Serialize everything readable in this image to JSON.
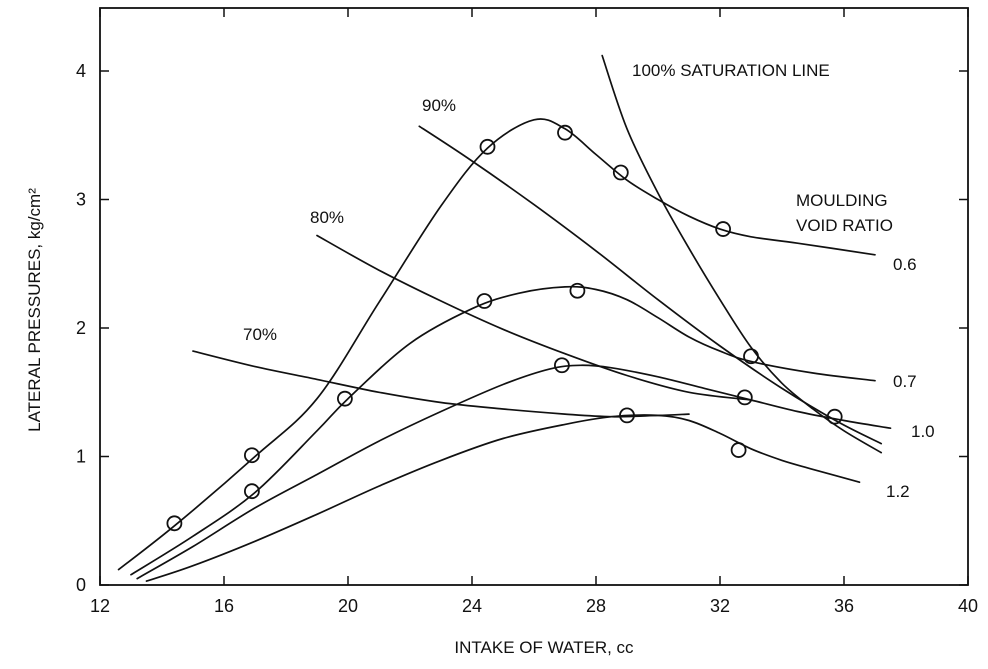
{
  "chart_data": {
    "type": "line",
    "title": "",
    "xlabel": "INTAKE OF WATER, cc",
    "ylabel": "LATERAL PRESSURES, kg/cm²",
    "xlim": [
      12,
      40
    ],
    "ylim": [
      0,
      4.4
    ],
    "xticks": [
      12,
      16,
      20,
      24,
      28,
      32,
      36,
      40
    ],
    "yticks": [
      0,
      1,
      2,
      3,
      4
    ],
    "grid": false,
    "legend_title": "MOULDING VOID RATIO",
    "series": [
      {
        "name": "0.6",
        "curve": [
          [
            12.6,
            0.12
          ],
          [
            14.5,
            0.48
          ],
          [
            17,
            1.0
          ],
          [
            19,
            1.45
          ],
          [
            21,
            2.2
          ],
          [
            23,
            2.95
          ],
          [
            24.5,
            3.4
          ],
          [
            26,
            3.62
          ],
          [
            27,
            3.55
          ],
          [
            28,
            3.35
          ],
          [
            29,
            3.15
          ],
          [
            30,
            3.0
          ],
          [
            31,
            2.87
          ],
          [
            32,
            2.77
          ],
          [
            33,
            2.71
          ],
          [
            34.5,
            2.66
          ],
          [
            37,
            2.57
          ]
        ],
        "points": [
          [
            14.4,
            0.48
          ],
          [
            16.9,
            1.01
          ],
          [
            24.5,
            3.41
          ],
          [
            27.0,
            3.52
          ],
          [
            28.8,
            3.21
          ],
          [
            32.1,
            2.77
          ]
        ]
      },
      {
        "name": "0.7",
        "curve": [
          [
            13.0,
            0.08
          ],
          [
            15,
            0.38
          ],
          [
            17,
            0.72
          ],
          [
            19,
            1.2
          ],
          [
            20,
            1.45
          ],
          [
            22,
            1.88
          ],
          [
            24,
            2.15
          ],
          [
            25.5,
            2.27
          ],
          [
            27,
            2.32
          ],
          [
            28,
            2.3
          ],
          [
            29,
            2.22
          ],
          [
            30,
            2.08
          ],
          [
            31,
            1.93
          ],
          [
            32,
            1.82
          ],
          [
            33,
            1.74
          ],
          [
            35,
            1.65
          ],
          [
            37,
            1.59
          ]
        ],
        "points": [
          [
            16.9,
            0.73
          ],
          [
            19.9,
            1.45
          ],
          [
            24.4,
            2.21
          ],
          [
            27.4,
            2.29
          ],
          [
            33.0,
            1.78
          ]
        ]
      },
      {
        "name": "1.0",
        "curve": [
          [
            13.2,
            0.05
          ],
          [
            15,
            0.3
          ],
          [
            17,
            0.6
          ],
          [
            19,
            0.86
          ],
          [
            21,
            1.12
          ],
          [
            23,
            1.35
          ],
          [
            25,
            1.56
          ],
          [
            26.5,
            1.68
          ],
          [
            27.5,
            1.71
          ],
          [
            28.5,
            1.69
          ],
          [
            30,
            1.62
          ],
          [
            31.5,
            1.53
          ],
          [
            33,
            1.44
          ],
          [
            34.5,
            1.35
          ],
          [
            36,
            1.28
          ],
          [
            37.5,
            1.22
          ]
        ],
        "points": [
          [
            26.9,
            1.71
          ],
          [
            32.8,
            1.46
          ],
          [
            35.7,
            1.31
          ]
        ]
      },
      {
        "name": "1.2",
        "curve": [
          [
            13.5,
            0.03
          ],
          [
            15,
            0.15
          ],
          [
            17,
            0.34
          ],
          [
            19,
            0.55
          ],
          [
            21,
            0.77
          ],
          [
            23,
            0.97
          ],
          [
            25,
            1.14
          ],
          [
            27,
            1.25
          ],
          [
            28.5,
            1.31
          ],
          [
            30,
            1.32
          ],
          [
            31,
            1.28
          ],
          [
            32,
            1.18
          ],
          [
            33,
            1.06
          ],
          [
            34,
            0.97
          ],
          [
            35,
            0.9
          ],
          [
            36.5,
            0.8
          ]
        ],
        "points": [
          [
            29.0,
            1.32
          ],
          [
            32.6,
            1.05
          ]
        ]
      }
    ],
    "reference_lines": [
      {
        "name": "100% SATURATION LINE",
        "curve": [
          [
            28.2,
            4.12
          ],
          [
            29,
            3.55
          ],
          [
            30,
            3.05
          ],
          [
            31,
            2.62
          ],
          [
            32,
            2.22
          ],
          [
            33,
            1.85
          ],
          [
            34,
            1.57
          ],
          [
            35,
            1.37
          ],
          [
            36,
            1.2
          ],
          [
            37.2,
            1.03
          ]
        ]
      },
      {
        "name": "90%",
        "curve": [
          [
            22.3,
            3.57
          ],
          [
            24,
            3.3
          ],
          [
            26,
            2.96
          ],
          [
            28,
            2.6
          ],
          [
            30,
            2.22
          ],
          [
            32,
            1.86
          ],
          [
            34,
            1.53
          ],
          [
            35.8,
            1.27
          ],
          [
            37.2,
            1.1
          ]
        ]
      },
      {
        "name": "80%",
        "curve": [
          [
            19,
            2.72
          ],
          [
            21,
            2.45
          ],
          [
            23,
            2.21
          ],
          [
            25,
            1.99
          ],
          [
            27,
            1.8
          ],
          [
            29,
            1.63
          ],
          [
            31,
            1.5
          ],
          [
            33,
            1.44
          ]
        ]
      },
      {
        "name": "70%",
        "curve": [
          [
            15,
            1.82
          ],
          [
            17,
            1.7
          ],
          [
            19,
            1.6
          ],
          [
            21,
            1.5
          ],
          [
            23,
            1.42
          ],
          [
            25,
            1.37
          ],
          [
            27,
            1.33
          ],
          [
            28.5,
            1.31
          ],
          [
            30,
            1.32
          ],
          [
            31,
            1.33
          ]
        ]
      }
    ],
    "point_marker": "open circle"
  }
}
